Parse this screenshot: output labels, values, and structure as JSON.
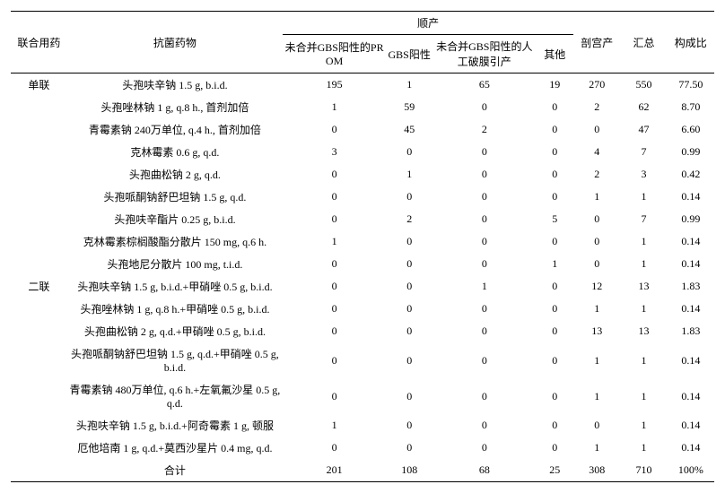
{
  "header": {
    "combo": "联合用药",
    "drug": "抗菌药物",
    "vaginal_group": "顺产",
    "prom": "未合并GBS阳性的PROM",
    "gbs": "GBS阳性",
    "induce": "未合并GBS阳性的人工破膜引产",
    "other": "其他",
    "cesar": "剖宫产",
    "total": "汇总",
    "ratio": "构成比"
  },
  "groups": {
    "single": "单联",
    "double": "二联"
  },
  "rows": [
    {
      "group": "single",
      "drug": "头孢呋辛钠 1.5 g, b.i.d.",
      "prom": "195",
      "gbs": "1",
      "induce": "65",
      "other": "19",
      "cesar": "270",
      "total": "550",
      "ratio": "77.50"
    },
    {
      "group": "",
      "drug": "头孢唑林钠 1 g, q.8 h., 首剂加倍",
      "prom": "1",
      "gbs": "59",
      "induce": "0",
      "other": "0",
      "cesar": "2",
      "total": "62",
      "ratio": "8.70"
    },
    {
      "group": "",
      "drug": "青霉素钠 240万单位, q.4 h., 首剂加倍",
      "prom": "0",
      "gbs": "45",
      "induce": "2",
      "other": "0",
      "cesar": "0",
      "total": "47",
      "ratio": "6.60"
    },
    {
      "group": "",
      "drug": "克林霉素 0.6 g, q.d.",
      "prom": "3",
      "gbs": "0",
      "induce": "0",
      "other": "0",
      "cesar": "4",
      "total": "7",
      "ratio": "0.99"
    },
    {
      "group": "",
      "drug": "头孢曲松钠 2 g, q.d.",
      "prom": "0",
      "gbs": "1",
      "induce": "0",
      "other": "0",
      "cesar": "2",
      "total": "3",
      "ratio": "0.42"
    },
    {
      "group": "",
      "drug": "头孢哌酮钠舒巴坦钠 1.5 g, q.d.",
      "prom": "0",
      "gbs": "0",
      "induce": "0",
      "other": "0",
      "cesar": "1",
      "total": "1",
      "ratio": "0.14"
    },
    {
      "group": "",
      "drug": "头孢呋辛酯片 0.25 g, b.i.d.",
      "prom": "0",
      "gbs": "2",
      "induce": "0",
      "other": "5",
      "cesar": "0",
      "total": "7",
      "ratio": "0.99"
    },
    {
      "group": "",
      "drug": "克林霉素棕榈酸酯分散片 150 mg, q.6 h.",
      "prom": "1",
      "gbs": "0",
      "induce": "0",
      "other": "0",
      "cesar": "0",
      "total": "1",
      "ratio": "0.14"
    },
    {
      "group": "",
      "drug": "头孢地尼分散片 100 mg, t.i.d.",
      "prom": "0",
      "gbs": "0",
      "induce": "0",
      "other": "1",
      "cesar": "0",
      "total": "1",
      "ratio": "0.14"
    },
    {
      "group": "double",
      "drug": "头孢呋辛钠 1.5 g, b.i.d.+甲硝唑 0.5 g, b.i.d.",
      "prom": "0",
      "gbs": "0",
      "induce": "1",
      "other": "0",
      "cesar": "12",
      "total": "13",
      "ratio": "1.83"
    },
    {
      "group": "",
      "drug": "头孢唑林钠 1 g, q.8 h.+甲硝唑 0.5 g, b.i.d.",
      "prom": "0",
      "gbs": "0",
      "induce": "0",
      "other": "0",
      "cesar": "1",
      "total": "1",
      "ratio": "0.14"
    },
    {
      "group": "",
      "drug": "头孢曲松钠 2 g, q.d.+甲硝唑 0.5 g, b.i.d.",
      "prom": "0",
      "gbs": "0",
      "induce": "0",
      "other": "0",
      "cesar": "13",
      "total": "13",
      "ratio": "1.83"
    },
    {
      "group": "",
      "drug": "头孢哌酮钠舒巴坦钠 1.5 g, q.d.+甲硝唑 0.5 g, b.i.d.",
      "prom": "0",
      "gbs": "0",
      "induce": "0",
      "other": "0",
      "cesar": "1",
      "total": "1",
      "ratio": "0.14"
    },
    {
      "group": "",
      "drug": "青霉素钠 480万单位, q.6 h.+左氧氟沙星 0.5 g, q.d.",
      "prom": "0",
      "gbs": "0",
      "induce": "0",
      "other": "0",
      "cesar": "1",
      "total": "1",
      "ratio": "0.14"
    },
    {
      "group": "",
      "drug": "头孢呋辛钠 1.5 g, b.i.d.+阿奇霉素 1 g, 顿服",
      "prom": "1",
      "gbs": "0",
      "induce": "0",
      "other": "0",
      "cesar": "0",
      "total": "1",
      "ratio": "0.14"
    },
    {
      "group": "",
      "drug": "厄他培南 1 g, q.d.+莫西沙星片 0.4 mg, q.d.",
      "prom": "0",
      "gbs": "0",
      "induce": "0",
      "other": "0",
      "cesar": "1",
      "total": "1",
      "ratio": "0.14"
    }
  ],
  "total_row": {
    "label": "合计",
    "prom": "201",
    "gbs": "108",
    "induce": "68",
    "other": "25",
    "cesar": "308",
    "total": "710",
    "ratio": "100%"
  }
}
